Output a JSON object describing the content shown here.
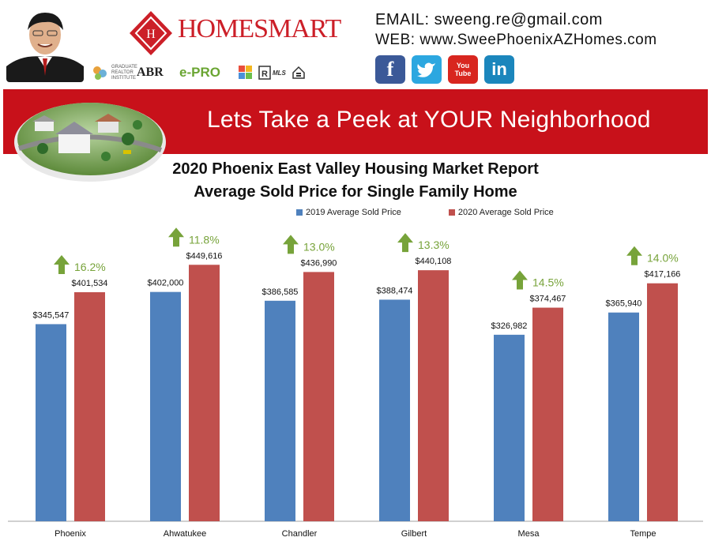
{
  "header": {
    "brand": "HOMESMART",
    "contact": {
      "email_label": "EMAIL:",
      "email": "sweeng.re@gmail.com",
      "web_label": "WEB:",
      "web": "www.SweePhoenixAZHomes.com"
    },
    "social": [
      {
        "name": "facebook",
        "glyph": "f",
        "color": "#3b5998"
      },
      {
        "name": "twitter",
        "glyph": "t",
        "color": "#2ca7e0"
      },
      {
        "name": "youtube",
        "glyph": "You Tube",
        "color": "#d8261f"
      },
      {
        "name": "linkedin",
        "glyph": "in",
        "color": "#1b86bc"
      }
    ],
    "badges": [
      "GRI",
      "ABR",
      "e-PRO",
      "MLS"
    ]
  },
  "banner": {
    "text": "Lets Take a Peek at YOUR Neighborhood"
  },
  "chart_data": {
    "type": "bar",
    "title": "2020 Phoenix East Valley Housing Market Report",
    "subtitle": "Average Sold Price for Single Family Home",
    "categories": [
      "Phoenix",
      "Ahwatukee",
      "Chandler",
      "Gilbert",
      "Mesa",
      "Tempe"
    ],
    "series": [
      {
        "name": "2019 Average Sold Price",
        "color": "#4f81bd",
        "values": [
          345547,
          402000,
          386585,
          388474,
          326982,
          365940
        ],
        "labels": [
          "$345,547",
          "$402,000",
          "$386,585",
          "$388,474",
          "$326,982",
          "$365,940"
        ]
      },
      {
        "name": "2020 Average Sold Price",
        "color": "#c0504d",
        "values": [
          401534,
          449616,
          436990,
          440108,
          374467,
          417166
        ],
        "labels": [
          "$401,534",
          "$449,616",
          "$436,990",
          "$440,108",
          "$374,467",
          "$417,166"
        ]
      }
    ],
    "changes": [
      "16.2%",
      "11.8%",
      "13.0%",
      "13.3%",
      "14.5%",
      "14.0%"
    ],
    "change_color": "#77a33a",
    "ylim": [
      0,
      540000
    ],
    "legend_position": "top-center",
    "grid": false
  }
}
